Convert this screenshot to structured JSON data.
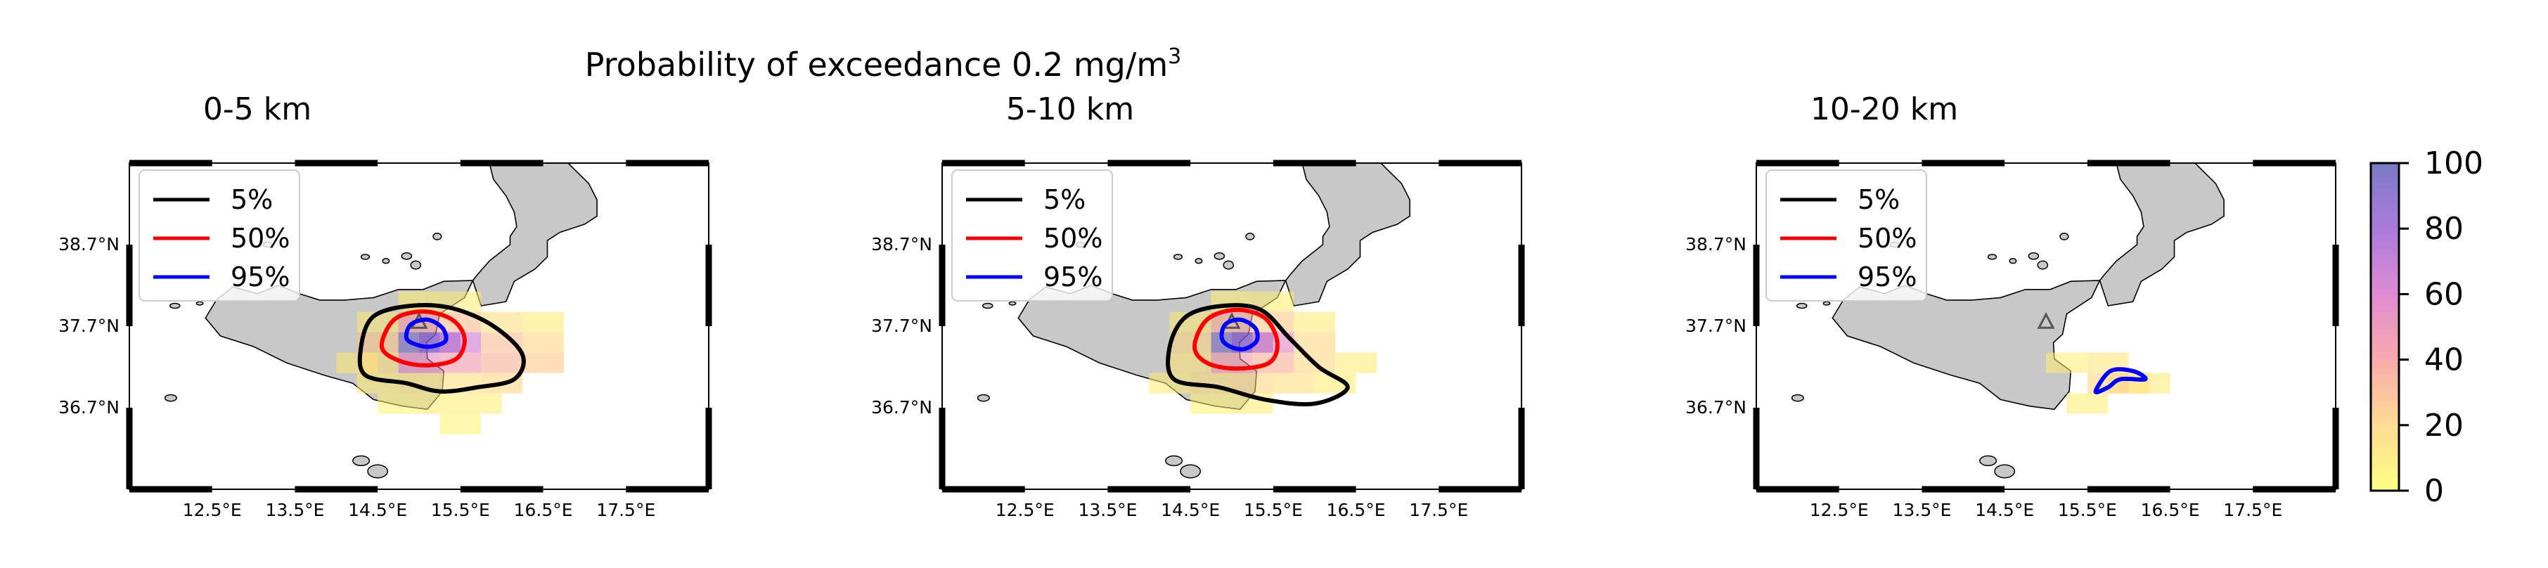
{
  "figure": {
    "title_prefix": "Probability of exceedance 0.2 mg/m",
    "title_superscript": "3"
  },
  "colors": {
    "land": "#c8c8c8",
    "coast": "#000000",
    "contour_5": "#000000",
    "contour_50": "#ff0000",
    "contour_95": "#0000ff",
    "volcano_marker": "#555555"
  },
  "colorbar": {
    "ticks": [
      "0",
      "20",
      "40",
      "60",
      "80",
      "100"
    ],
    "range": [
      0,
      100
    ],
    "colormap": "plasma_r (translucent)"
  },
  "chart_data": [
    {
      "type": "heatmap",
      "title": "0-5 km",
      "x_ticks": [
        "12.5°E",
        "13.5°E",
        "14.5°E",
        "15.5°E",
        "16.5°E",
        "17.5°E"
      ],
      "y_ticks": [
        "38.7°N",
        "37.7°N",
        "36.7°N"
      ],
      "legend": [
        "5%",
        "50%",
        "95%"
      ],
      "legend_placement": "top-left",
      "cells": [
        [
          15.0,
          38.0,
          8
        ],
        [
          15.5,
          38.0,
          10
        ],
        [
          14.5,
          37.75,
          10
        ],
        [
          15.0,
          37.75,
          40
        ],
        [
          15.5,
          37.75,
          30
        ],
        [
          16.0,
          37.75,
          15
        ],
        [
          16.5,
          37.75,
          10
        ],
        [
          14.5,
          37.5,
          25
        ],
        [
          15.0,
          37.5,
          95
        ],
        [
          15.25,
          37.5,
          85
        ],
        [
          15.5,
          37.5,
          65
        ],
        [
          16.0,
          37.5,
          30
        ],
        [
          16.5,
          37.5,
          20
        ],
        [
          14.25,
          37.25,
          10
        ],
        [
          14.5,
          37.25,
          15
        ],
        [
          15.0,
          37.25,
          55
        ],
        [
          15.5,
          37.25,
          45
        ],
        [
          16.0,
          37.25,
          35
        ],
        [
          16.5,
          37.25,
          25
        ],
        [
          14.5,
          37.0,
          8
        ],
        [
          15.0,
          37.0,
          12
        ],
        [
          15.5,
          37.0,
          15
        ],
        [
          16.0,
          37.0,
          20
        ],
        [
          14.75,
          36.75,
          6
        ],
        [
          15.25,
          36.75,
          8
        ],
        [
          15.75,
          36.75,
          8
        ],
        [
          15.5,
          36.5,
          5
        ]
      ]
    },
    {
      "type": "heatmap",
      "title": "5-10 km",
      "x_ticks": [
        "12.5°E",
        "13.5°E",
        "14.5°E",
        "15.5°E",
        "16.5°E",
        "17.5°E"
      ],
      "y_ticks": [
        "38.7°N",
        "37.7°N",
        "36.7°N"
      ],
      "legend": [
        "5%",
        "50%",
        "95%"
      ],
      "legend_placement": "top-left",
      "cells": [
        [
          15.0,
          38.0,
          6
        ],
        [
          15.5,
          38.0,
          8
        ],
        [
          14.5,
          37.75,
          10
        ],
        [
          15.0,
          37.75,
          35
        ],
        [
          15.5,
          37.75,
          25
        ],
        [
          16.0,
          37.75,
          10
        ],
        [
          14.5,
          37.5,
          20
        ],
        [
          15.0,
          37.5,
          95
        ],
        [
          15.25,
          37.5,
          85
        ],
        [
          15.5,
          37.5,
          55
        ],
        [
          16.0,
          37.5,
          20
        ],
        [
          14.5,
          37.25,
          12
        ],
        [
          15.0,
          37.25,
          45
        ],
        [
          15.5,
          37.25,
          35
        ],
        [
          16.0,
          37.25,
          20
        ],
        [
          16.5,
          37.25,
          10
        ],
        [
          14.25,
          37.0,
          8
        ],
        [
          14.75,
          37.0,
          15
        ],
        [
          15.25,
          37.0,
          20
        ],
        [
          15.75,
          37.0,
          15
        ],
        [
          16.25,
          37.0,
          8
        ],
        [
          14.75,
          36.75,
          6
        ],
        [
          15.25,
          36.75,
          8
        ]
      ]
    },
    {
      "type": "heatmap",
      "title": "10-20 km",
      "x_ticks": [
        "12.5°E",
        "13.5°E",
        "14.5°E",
        "15.5°E",
        "16.5°E",
        "17.5°E"
      ],
      "y_ticks": [
        "38.7°N",
        "37.7°N",
        "36.7°N"
      ],
      "legend": [
        "5%",
        "50%",
        "95%"
      ],
      "legend_placement": "top-left",
      "cells": [
        [
          15.25,
          37.25,
          8
        ],
        [
          15.75,
          37.25,
          12
        ],
        [
          16.0,
          37.0,
          15
        ],
        [
          16.25,
          37.0,
          10
        ],
        [
          15.75,
          37.0,
          20
        ],
        [
          15.5,
          36.75,
          8
        ]
      ]
    }
  ]
}
